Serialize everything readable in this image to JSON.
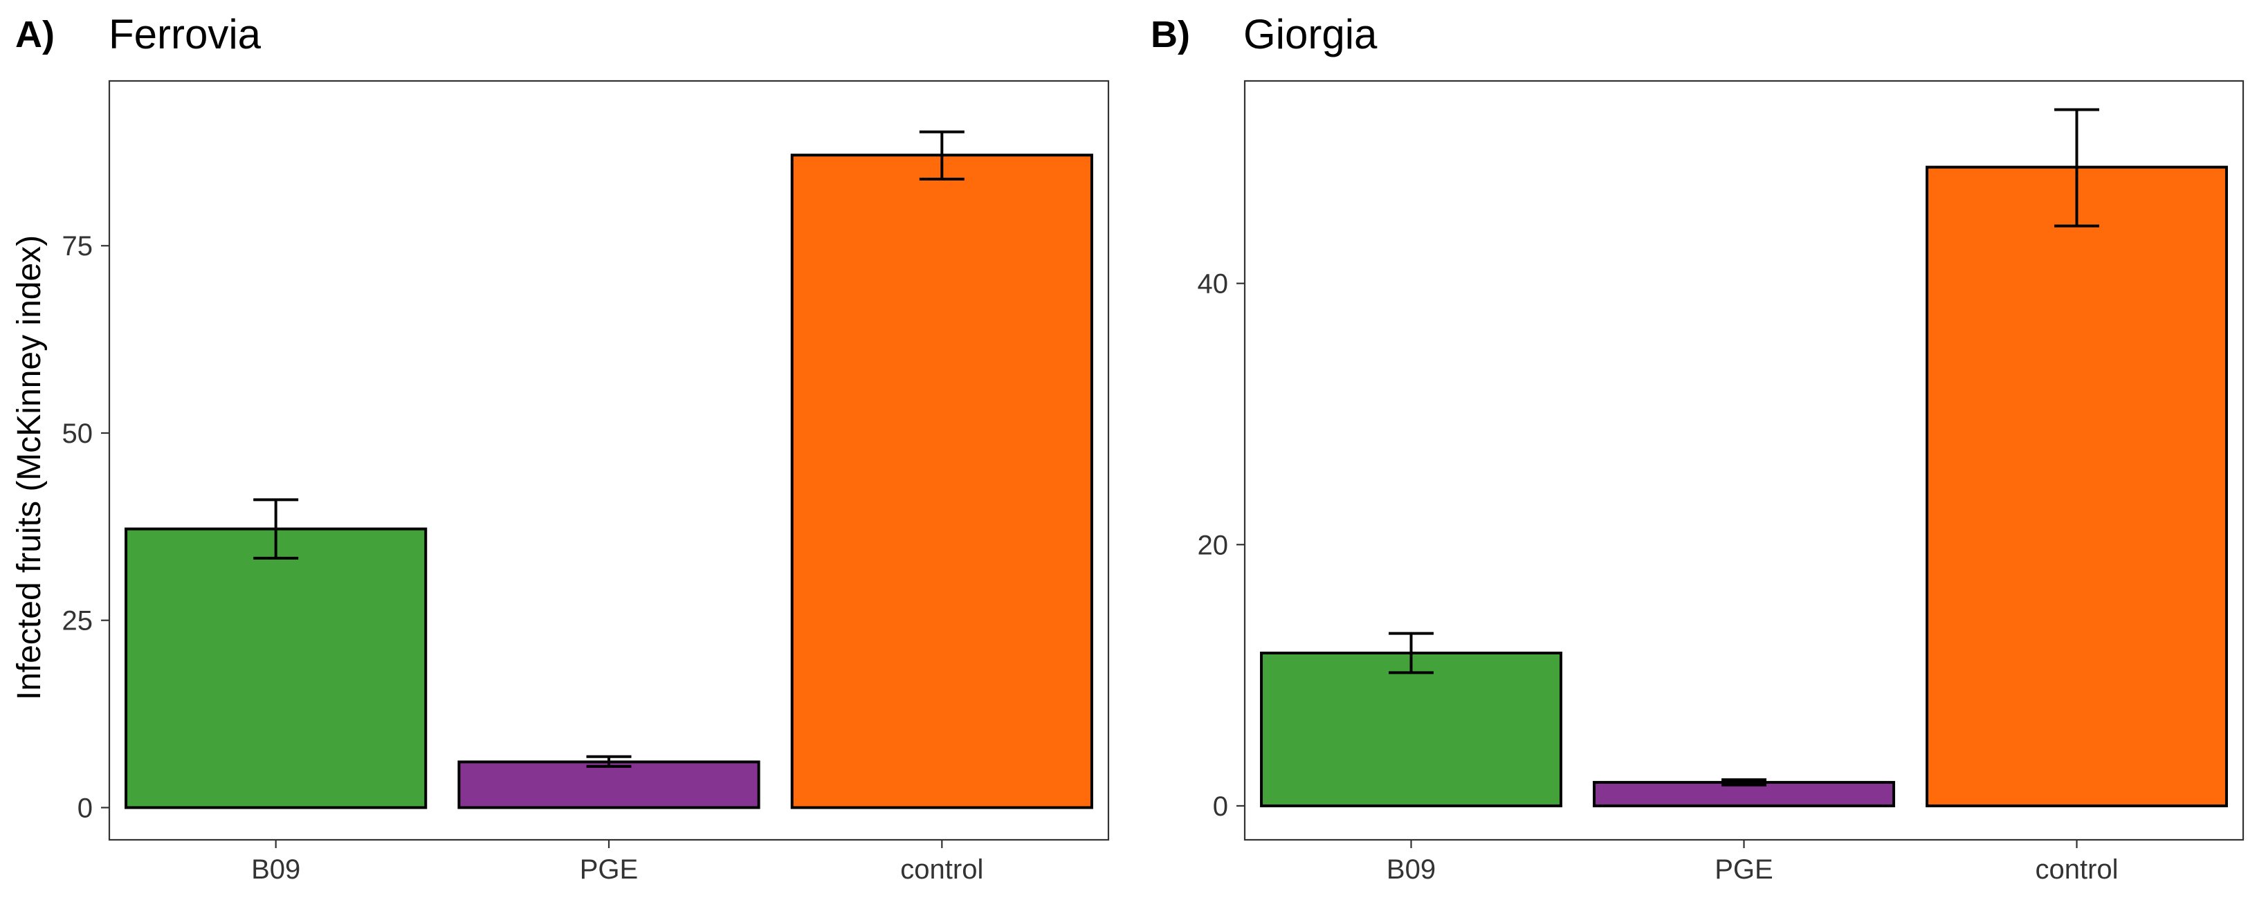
{
  "chart_data": [
    {
      "type": "bar",
      "panel_label": "A)",
      "title": "Ferrovia",
      "xlabel": "",
      "ylabel": "Infected fruits (McKinney index)",
      "categories": [
        "B09",
        "PGE",
        "control"
      ],
      "values": [
        37.2,
        6.1,
        87.1
      ],
      "error": [
        [
          33.3,
          41.1
        ],
        [
          5.5,
          6.8
        ],
        [
          83.9,
          90.2
        ]
      ],
      "colors": [
        "#43A23A",
        "#853591",
        "#FF6B0B"
      ],
      "ylim": [
        -4.3,
        97.0
      ],
      "yticks": [
        0,
        25,
        50,
        75
      ],
      "ytick_labels": [
        "0",
        "25",
        "50",
        "75"
      ],
      "grid": false
    },
    {
      "type": "bar",
      "panel_label": "B)",
      "title": "Giorgia",
      "xlabel": "",
      "ylabel": "",
      "categories": [
        "B09",
        "PGE",
        "control"
      ],
      "values": [
        11.7,
        1.8,
        48.9
      ],
      "error": [
        [
          10.2,
          13.2
        ],
        [
          1.6,
          2.0
        ],
        [
          44.4,
          53.3
        ]
      ],
      "colors": [
        "#43A23A",
        "#853591",
        "#FF6B0B"
      ],
      "ylim": [
        -2.6,
        55.5
      ],
      "yticks": [
        0,
        20,
        40
      ],
      "ytick_labels": [
        "0",
        "20",
        "40"
      ],
      "grid": false
    }
  ]
}
